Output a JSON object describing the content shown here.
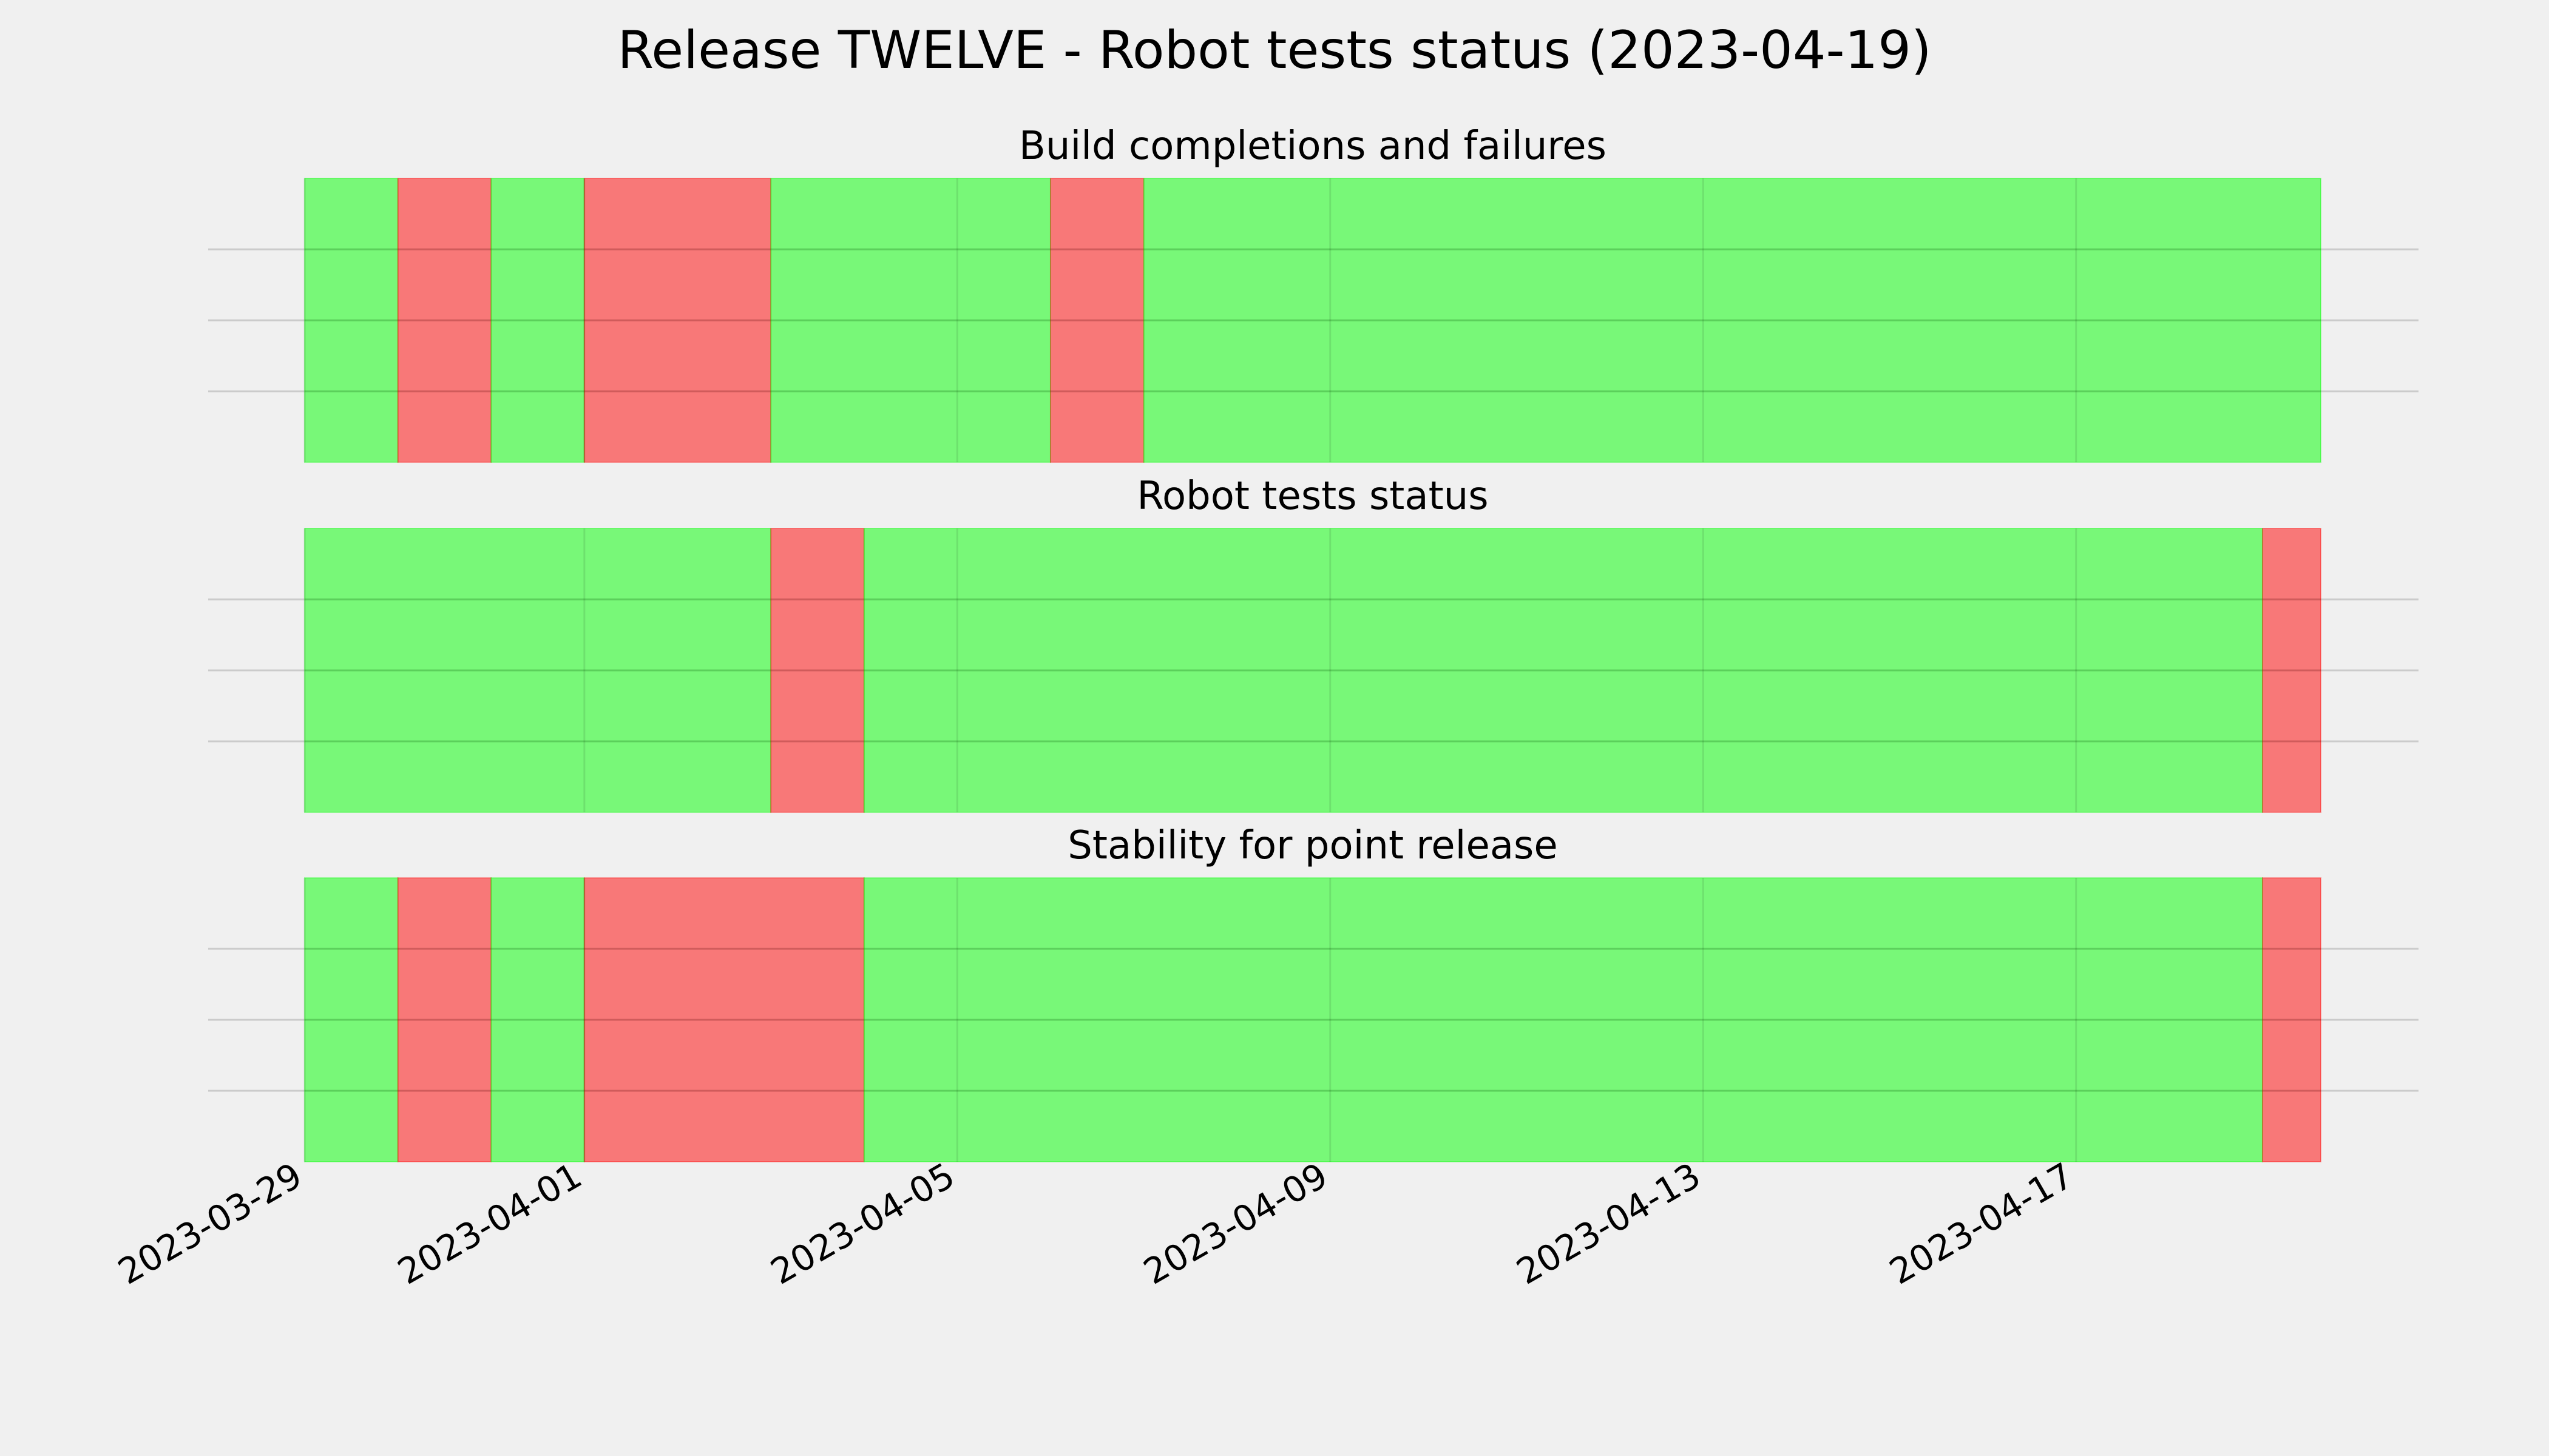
{
  "chart_data": {
    "type": "timeline",
    "title": "Release TWELVE - Robot tests status (2023-04-19)",
    "x_range": [
      "2023-03-29",
      "2023-04-19 15:00"
    ],
    "x_ticks": [
      "2023-03-29",
      "2023-04-01",
      "2023-04-05",
      "2023-04-09",
      "2023-04-13",
      "2023-04-17"
    ],
    "grid": true,
    "status_colors": {
      "pass": "#00ff00",
      "fail": "#ff0000"
    },
    "panels": [
      {
        "subtitle": "Build completions and failures",
        "segments": [
          {
            "start": "2023-03-29",
            "end": "2023-03-30",
            "status": "pass"
          },
          {
            "start": "2023-03-30",
            "end": "2023-03-31",
            "status": "fail"
          },
          {
            "start": "2023-03-31",
            "end": "2023-04-01",
            "status": "pass"
          },
          {
            "start": "2023-04-01",
            "end": "2023-04-03",
            "status": "fail"
          },
          {
            "start": "2023-04-03",
            "end": "2023-04-06",
            "status": "pass"
          },
          {
            "start": "2023-04-06",
            "end": "2023-04-07",
            "status": "fail"
          },
          {
            "start": "2023-04-07",
            "end": "2023-04-19 15:00",
            "status": "pass"
          }
        ]
      },
      {
        "subtitle": "Robot tests status",
        "segments": [
          {
            "start": "2023-03-29",
            "end": "2023-04-03",
            "status": "pass"
          },
          {
            "start": "2023-04-03",
            "end": "2023-04-04",
            "status": "fail"
          },
          {
            "start": "2023-04-04",
            "end": "2023-04-19",
            "status": "pass"
          },
          {
            "start": "2023-04-19",
            "end": "2023-04-19 15:00",
            "status": "fail"
          }
        ]
      },
      {
        "subtitle": "Stability for point release",
        "segments": [
          {
            "start": "2023-03-29",
            "end": "2023-03-30",
            "status": "pass"
          },
          {
            "start": "2023-03-30",
            "end": "2023-03-31",
            "status": "fail"
          },
          {
            "start": "2023-03-31",
            "end": "2023-04-01",
            "status": "pass"
          },
          {
            "start": "2023-04-01",
            "end": "2023-04-04",
            "status": "fail"
          },
          {
            "start": "2023-04-04",
            "end": "2023-04-19",
            "status": "pass"
          },
          {
            "start": "2023-04-19",
            "end": "2023-04-19 15:00",
            "status": "fail"
          }
        ]
      }
    ]
  }
}
